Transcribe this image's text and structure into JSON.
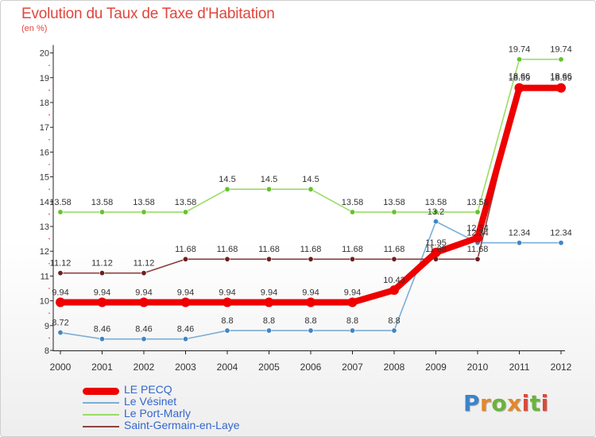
{
  "title": "Evolution du Taux de Taxe d'Habitation",
  "unit_label": "(en %)",
  "logo_text": "Proxiti",
  "chart_data": {
    "type": "line",
    "title": "Evolution du Taux de Taxe d'Habitation",
    "ylabel": "(en %)",
    "xlabel": "",
    "x": [
      "2000",
      "2001",
      "2002",
      "2003",
      "2004",
      "2005",
      "2006",
      "2007",
      "2008",
      "2009",
      "2010",
      "2011",
      "2012"
    ],
    "ylim": [
      8,
      20
    ],
    "yticks": [
      8,
      9,
      10,
      11,
      12,
      13,
      14,
      15,
      16,
      17,
      18,
      19,
      20
    ],
    "grid": false,
    "legend_position": "bottom-left",
    "series": [
      {
        "name": "LE PECQ",
        "color": "#ee0000",
        "emphasis": true,
        "values": [
          9.94,
          9.94,
          9.94,
          9.94,
          9.94,
          9.94,
          9.94,
          9.94,
          10.43,
          11.95,
          12.54,
          18.59,
          18.59
        ],
        "labels": [
          "9.94",
          "9.94",
          "9.94",
          "9.94",
          "9.94",
          "9.94",
          "9.94",
          "9.94",
          "10.43",
          "11.95",
          "12.54",
          "18.59",
          "18.59"
        ]
      },
      {
        "name": "Le Vésinet",
        "color": "#7aaed6",
        "marker_color": "#3f86c6",
        "values": [
          8.72,
          8.46,
          8.46,
          8.46,
          8.8,
          8.8,
          8.8,
          8.8,
          8.8,
          13.2,
          12.34,
          12.34,
          12.34
        ],
        "labels": [
          "8.72",
          "8.46",
          "8.46",
          "8.46",
          "8.8",
          "8.8",
          "8.8",
          "8.8",
          "8.8",
          "13.2",
          "12.34",
          "12.34",
          "12.34"
        ]
      },
      {
        "name": "Le Port-Marly",
        "color": "#99dd66",
        "marker_color": "#66c22e",
        "values": [
          13.58,
          13.58,
          13.58,
          13.58,
          14.5,
          14.5,
          14.5,
          13.58,
          13.58,
          13.58,
          13.58,
          19.74,
          19.74
        ],
        "labels": [
          "13.58",
          "13.58",
          "13.58",
          "13.58",
          "14.5",
          "14.5",
          "14.5",
          "13.58",
          "13.58",
          "13.58",
          "13.58",
          "19.74",
          "19.74"
        ]
      },
      {
        "name": "Saint-Germain-en-Laye",
        "color": "#8e4242",
        "marker_color": "#6b1f1f",
        "values": [
          11.12,
          11.12,
          11.12,
          11.68,
          11.68,
          11.68,
          11.68,
          11.68,
          11.68,
          11.68,
          11.68,
          18.66,
          18.66
        ],
        "labels": [
          "11.12",
          "11.12",
          "11.12",
          "11.68",
          "11.68",
          "11.68",
          "11.68",
          "11.68",
          "11.68",
          "11.68",
          "11.68",
          "18.66",
          "18.66"
        ]
      }
    ]
  }
}
